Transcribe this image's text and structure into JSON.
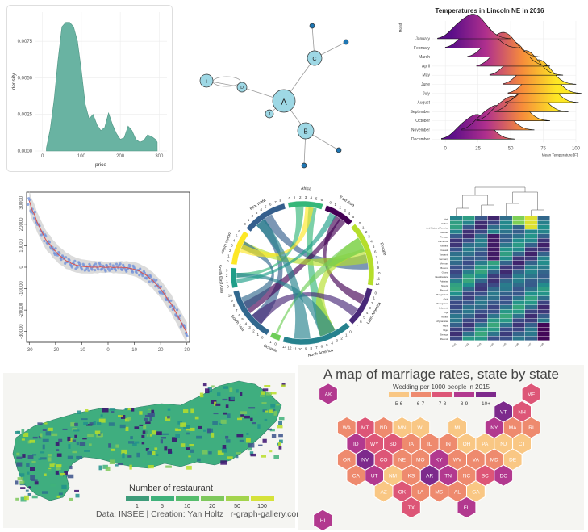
{
  "density_panel": {
    "chart_data": {
      "type": "area",
      "xlabel": "price",
      "ylabel": "density",
      "x_ticks": [
        "0",
        "100",
        "200",
        "300"
      ],
      "y_ticks": [
        "0.0000",
        "0.0025",
        "0.0050",
        "0.0075"
      ],
      "xlim": [
        -20,
        320
      ],
      "ylim": [
        0,
        0.0095
      ],
      "x": [
        10,
        20,
        30,
        40,
        50,
        60,
        70,
        80,
        90,
        100,
        110,
        120,
        130,
        140,
        150,
        160,
        170,
        180,
        190,
        200,
        210,
        220,
        230,
        240,
        250,
        260,
        270,
        280,
        290,
        295
      ],
      "values": [
        0.0002,
        0.0015,
        0.0035,
        0.0062,
        0.0085,
        0.0088,
        0.0088,
        0.0085,
        0.0075,
        0.0055,
        0.0032,
        0.0022,
        0.0025,
        0.0018,
        0.0014,
        0.0016,
        0.0026,
        0.0018,
        0.0012,
        0.0008,
        0.0009,
        0.0017,
        0.0014,
        0.0008,
        0.0006,
        0.0007,
        0.0011,
        0.001,
        0.0008,
        0.0006
      ],
      "fill": "#69b3a2"
    }
  },
  "network_panel": {
    "chart_data": {
      "type": "network",
      "nodes": [
        {
          "id": "A",
          "size": "large"
        },
        {
          "id": "B",
          "size": "medium"
        },
        {
          "id": "C",
          "size": "medium"
        },
        {
          "id": "D",
          "size": "small"
        },
        {
          "id": "I",
          "size": "medium"
        },
        {
          "id": "J",
          "size": "small"
        },
        {
          "id": "E",
          "size": "tiny"
        },
        {
          "id": "F",
          "size": "tiny"
        },
        {
          "id": "G",
          "size": "tiny"
        },
        {
          "id": "H",
          "size": "tiny"
        }
      ],
      "node_labels_shown": [
        "A",
        "B",
        "C",
        "D",
        "I",
        "J"
      ],
      "edges": [
        [
          "A",
          "C"
        ],
        [
          "A",
          "D"
        ],
        [
          "A",
          "J"
        ],
        [
          "A",
          "B"
        ],
        [
          "I",
          "D"
        ],
        [
          "I",
          "I"
        ],
        [
          "C",
          "E"
        ],
        [
          "C",
          "F"
        ],
        [
          "B",
          "G"
        ],
        [
          "B",
          "H"
        ]
      ],
      "node_color": "#9ed8e5"
    }
  },
  "ridgeline_panel": {
    "chart_data": {
      "type": "ridgeline",
      "title": "Temperatures in Lincoln NE in 2016",
      "xlabel": "Mean Temperature [F]",
      "ylabel": "Month",
      "categories": [
        "January",
        "February",
        "March",
        "April",
        "May",
        "June",
        "July",
        "August",
        "September",
        "October",
        "November",
        "December"
      ],
      "peaks": [
        22,
        28,
        45,
        52,
        62,
        72,
        76,
        74,
        66,
        52,
        40,
        25
      ],
      "x_ticks": [
        "0",
        "25",
        "50",
        "75",
        "100"
      ],
      "xlim": [
        -10,
        100
      ],
      "colors": [
        "#5b0e89",
        "#b0308d",
        "#f68b3b",
        "#fde724"
      ]
    }
  },
  "scatter_panel": {
    "chart_data": {
      "type": "scatter",
      "x_ticks": [
        "-30",
        "-20",
        "-10",
        "0",
        "10",
        "20",
        "30"
      ],
      "y_ticks": [
        "30000",
        "20000",
        "10000",
        "0",
        "-10000",
        "-20000",
        "-30000"
      ],
      "xlim": [
        -31,
        31
      ],
      "ylim": [
        -35000,
        35000
      ],
      "x": [
        -30,
        -29,
        -28,
        -27,
        -26,
        -25,
        -24,
        -23,
        -22,
        -21,
        -20,
        -19,
        -18,
        -17,
        -16,
        -15,
        -14,
        -13,
        -12,
        -11,
        -10,
        -9,
        -8,
        -7,
        -6,
        -5,
        -4,
        -3,
        -2,
        -1,
        0,
        1,
        2,
        3,
        4,
        5,
        6,
        7,
        8,
        9,
        10,
        11,
        12,
        13,
        14,
        15,
        16,
        17,
        18,
        19,
        20,
        21,
        22,
        23,
        24,
        25,
        26,
        27,
        28,
        29,
        30
      ],
      "values": [
        31000,
        27000,
        24500,
        21000,
        18500,
        16000,
        13500,
        11500,
        10500,
        8500,
        7500,
        6000,
        5000,
        4200,
        3000,
        2600,
        1800,
        1400,
        900,
        700,
        400,
        300,
        200,
        100,
        0,
        100,
        -100,
        200,
        0,
        -100,
        0,
        100,
        -200,
        0,
        -100,
        0,
        -300,
        -200,
        -500,
        -700,
        -1000,
        -1300,
        -1900,
        -2700,
        -3300,
        -4100,
        -5300,
        -6100,
        -7600,
        -8800,
        -10200,
        -11800,
        -13600,
        -15500,
        -17000,
        -19500,
        -21500,
        -23900,
        -26000,
        -28500,
        -30500
      ],
      "point_color": "#6c8ed9",
      "fit_color": "#d9534f"
    }
  },
  "chord_panel": {
    "chart_data": {
      "type": "chord",
      "sectors": [
        {
          "name": "West Asia",
          "color": "#355f8d"
        },
        {
          "name": "Africa",
          "color": "#35b779"
        },
        {
          "name": "East Asia",
          "color": "#440154"
        },
        {
          "name": "Europe",
          "color": "#b5de2b"
        },
        {
          "name": "Latin America",
          "color": "#482878"
        },
        {
          "name": "North America",
          "color": "#26828e"
        },
        {
          "name": "Oceania",
          "color": "#6ece58"
        },
        {
          "name": "South Asia",
          "color": "#31688e"
        },
        {
          "name": "South East Asia",
          "color": "#1f9e89"
        },
        {
          "name": "Soviet Union",
          "color": "#fde725"
        }
      ],
      "sector_ticks": [
        [
          "0",
          "1",
          "2",
          "3",
          "4",
          "5",
          "6",
          "7",
          "8"
        ],
        [
          "0",
          "1",
          "2",
          "3",
          "4",
          "5",
          "6"
        ],
        [
          "0",
          "1",
          "2",
          "3",
          "4",
          "5"
        ],
        [
          "0",
          "1",
          "2",
          "3",
          "4",
          "5",
          "6",
          "7",
          "8",
          "9",
          "10",
          "11",
          "12"
        ],
        [
          "0",
          "1",
          "2",
          "3",
          "4",
          "5",
          "6",
          "7"
        ],
        [
          "0",
          "1",
          "2",
          "3",
          "4",
          "5",
          "6",
          "7",
          "8",
          "9",
          "10",
          "11",
          "12",
          "13"
        ],
        [
          "0",
          "1"
        ],
        [
          "0",
          "1",
          "2",
          "3",
          "4",
          "5",
          "6",
          "7",
          "8",
          "9",
          "10"
        ],
        [
          "0",
          "1",
          "2",
          "3"
        ],
        [
          "0",
          "1",
          "2",
          "3",
          "4",
          "5",
          "6"
        ]
      ]
    }
  },
  "heatmap_panel": {
    "chart_data": {
      "type": "heatmap",
      "rows": [
        "Haiti",
        "Kiribati",
        "United States of America",
        "Sweden",
        "Portugal",
        "Cameroon",
        "Australia",
        "Canada",
        "Tanzania",
        "Germany",
        "Vietnam",
        "Burundi",
        "Ghana",
        "New Zealand",
        "Pakistan",
        "Nigeria",
        "Rwanda",
        "Bangladesh",
        "Chile",
        "Madagascar",
        "Indonesia",
        "Togo",
        "Malawi",
        "Afghanistan",
        "Nepal",
        "Niger",
        "Senegal",
        "Rwanda"
      ],
      "columns": [
        "Col1",
        "Col2",
        "Col3",
        "Col4",
        "Col5",
        "Col6",
        "Col7",
        "Col8"
      ],
      "colors": [
        "#440154",
        "#3b528b",
        "#21918c",
        "#5ec962",
        "#fde725"
      ]
    }
  },
  "choropleth_panel": {
    "chart_data": {
      "type": "choropleth",
      "legend_title": "Number of restaurant",
      "legend_labels": [
        "1",
        "5",
        "10",
        "20",
        "50",
        "100"
      ],
      "legend_colors": [
        "#3e9c7a",
        "#3fb17a",
        "#56bd6c",
        "#7ec85c",
        "#a3d44d",
        "#d5e23a"
      ],
      "caption": "Data: INSEE | Creation: Yan Holtz | r-graph-gallery.com"
    }
  },
  "hexmap_panel": {
    "chart_data": {
      "type": "hexbin-map",
      "title": "A map of marriage rates, state by state",
      "legend_title": "Wedding per 1000 people in 2015",
      "legend_labels": [
        "5-6",
        "6-7",
        "7-8",
        "8-9",
        "10+"
      ],
      "legend_colors": [
        "#f9c784",
        "#ee8a6e",
        "#dd5677",
        "#b2398f",
        "#7d2a8c"
      ],
      "states": [
        {
          "code": "AK",
          "bin": 3
        },
        {
          "code": "ME",
          "bin": 2
        },
        {
          "code": "VT",
          "bin": 4
        },
        {
          "code": "NH",
          "bin": 2
        },
        {
          "code": "WA",
          "bin": 1
        },
        {
          "code": "MT",
          "bin": 2
        },
        {
          "code": "ND",
          "bin": 1
        },
        {
          "code": "MN",
          "bin": 0
        },
        {
          "code": "WI",
          "bin": 0
        },
        {
          "code": "MI",
          "bin": 0
        },
        {
          "code": "NY",
          "bin": 3
        },
        {
          "code": "MA",
          "bin": 1
        },
        {
          "code": "RI",
          "bin": 1
        },
        {
          "code": "ID",
          "bin": 3
        },
        {
          "code": "WY",
          "bin": 2
        },
        {
          "code": "SD",
          "bin": 2
        },
        {
          "code": "IA",
          "bin": 1
        },
        {
          "code": "IL",
          "bin": 1
        },
        {
          "code": "IN",
          "bin": 1
        },
        {
          "code": "OH",
          "bin": 0
        },
        {
          "code": "PA",
          "bin": 0
        },
        {
          "code": "NJ",
          "bin": 0
        },
        {
          "code": "CT",
          "bin": 0
        },
        {
          "code": "OR",
          "bin": 1
        },
        {
          "code": "NV",
          "bin": 4
        },
        {
          "code": "CO",
          "bin": 2
        },
        {
          "code": "NE",
          "bin": 1
        },
        {
          "code": "MO",
          "bin": 1
        },
        {
          "code": "KY",
          "bin": 3
        },
        {
          "code": "WV",
          "bin": 1
        },
        {
          "code": "VA",
          "bin": 1
        },
        {
          "code": "MD",
          "bin": 1
        },
        {
          "code": "DE",
          "bin": 0
        },
        {
          "code": "CA",
          "bin": 1
        },
        {
          "code": "UT",
          "bin": 3
        },
        {
          "code": "NM",
          "bin": 0
        },
        {
          "code": "KS",
          "bin": 1
        },
        {
          "code": "AR",
          "bin": 4
        },
        {
          "code": "TN",
          "bin": 3
        },
        {
          "code": "NC",
          "bin": 1
        },
        {
          "code": "SC",
          "bin": 2
        },
        {
          "code": "DC",
          "bin": 3
        },
        {
          "code": "AZ",
          "bin": 0
        },
        {
          "code": "OK",
          "bin": 2
        },
        {
          "code": "LA",
          "bin": 1
        },
        {
          "code": "MS",
          "bin": 1
        },
        {
          "code": "AL",
          "bin": 1
        },
        {
          "code": "GA",
          "bin": 0
        },
        {
          "code": "TX",
          "bin": 2
        },
        {
          "code": "FL",
          "bin": 3
        },
        {
          "code": "HI",
          "bin": 3
        }
      ]
    }
  }
}
